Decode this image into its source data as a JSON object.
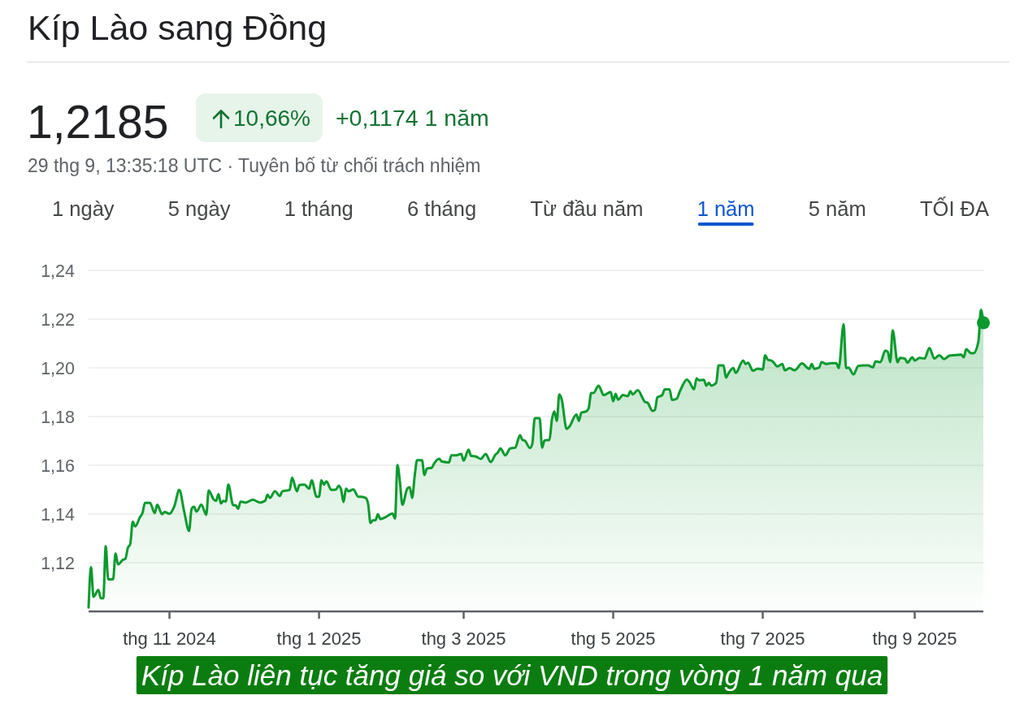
{
  "chart_data": {
    "type": "area",
    "title": "Kíp Lào sang Đồng",
    "annotations": [
      "1,2185",
      "10,66%",
      "+0,1174 1 năm",
      "29 thg 9, 13:35:18 UTC · Tuyên bố từ chối trách nhiệm",
      "1 ngày",
      "5 ngày",
      "1 tháng",
      "6 tháng",
      "Từ đầu năm",
      "1 năm",
      "5 năm",
      "TỐI ĐA",
      "Kíp Lào liên tục tăng giá so với VND trong vòng 1 năm qua"
    ],
    "xlim": [
      "2024-09-29",
      "2025-09-29"
    ],
    "xticks": [
      {
        "value": "2024-11-01",
        "label": "thg 11 2024"
      },
      {
        "value": "2025-01-01",
        "label": "thg 1 2025"
      },
      {
        "value": "2025-03-01",
        "label": "thg 3 2025"
      },
      {
        "value": "2025-05-01",
        "label": "thg 5 2025"
      },
      {
        "value": "2025-07-01",
        "label": "thg 7 2025"
      },
      {
        "value": "2025-09-01",
        "label": "thg 9 2025"
      }
    ],
    "ylim": [
      1.1,
      1.24
    ],
    "yticks": [
      {
        "value": 1.12,
        "label": "1,12"
      },
      {
        "value": 1.14,
        "label": "1,14"
      },
      {
        "value": 1.16,
        "label": "1,16"
      },
      {
        "value": 1.18,
        "label": "1,18"
      },
      {
        "value": 1.2,
        "label": "1,20"
      },
      {
        "value": 1.22,
        "label": "1,22"
      },
      {
        "value": 1.24,
        "label": "1,24"
      }
    ],
    "grid": "y",
    "series": [
      {
        "color": "#0a9a2e",
        "x": [
          "2024-09-29",
          "2024-09-30",
          "2024-10-01",
          "2024-10-03",
          "2024-10-04",
          "2024-10-05",
          "2024-10-06",
          "2024-10-07",
          "2024-10-09",
          "2024-10-10",
          "2024-10-11",
          "2024-10-13",
          "2024-10-14",
          "2024-10-15",
          "2024-10-16",
          "2024-10-17",
          "2024-10-18",
          "2024-10-20",
          "2024-10-21",
          "2024-10-22",
          "2024-10-24",
          "2024-10-26",
          "2024-10-27",
          "2024-10-29",
          "2024-10-30",
          "2024-11-01",
          "2024-11-03",
          "2024-11-05",
          "2024-11-07",
          "2024-11-09",
          "2024-11-10",
          "2024-11-11",
          "2024-11-12",
          "2024-11-14",
          "2024-11-16",
          "2024-11-17",
          "2024-11-19",
          "2024-11-20",
          "2024-11-21",
          "2024-11-22",
          "2024-11-23",
          "2024-11-24",
          "2024-11-25",
          "2024-11-27",
          "2024-11-28",
          "2024-11-29",
          "2024-11-30",
          "2024-12-02",
          "2024-12-05",
          "2024-12-08",
          "2024-12-10",
          "2024-12-11",
          "2024-12-12",
          "2024-12-14",
          "2024-12-16",
          "2024-12-17",
          "2024-12-20",
          "2024-12-21",
          "2024-12-23",
          "2024-12-24",
          "2024-12-26",
          "2024-12-28",
          "2024-12-29",
          "2024-12-31",
          "2025-01-01",
          "2025-01-02",
          "2025-01-03",
          "2025-01-04",
          "2025-01-06",
          "2025-01-08",
          "2025-01-09",
          "2025-01-10",
          "2025-01-11",
          "2025-01-12",
          "2025-01-13",
          "2025-01-15",
          "2025-01-17",
          "2025-01-18",
          "2025-01-20",
          "2025-01-21",
          "2025-01-22",
          "2025-01-23",
          "2025-01-24",
          "2025-01-25",
          "2025-01-26",
          "2025-01-28",
          "2025-01-30",
          "2025-01-31",
          "2025-02-01",
          "2025-02-02",
          "2025-02-03",
          "2025-02-04",
          "2025-02-06",
          "2025-02-07",
          "2025-02-08",
          "2025-02-09",
          "2025-02-10",
          "2025-02-12",
          "2025-02-13",
          "2025-02-14",
          "2025-02-16",
          "2025-02-17",
          "2025-02-19",
          "2025-02-20",
          "2025-02-23",
          "2025-02-24",
          "2025-02-26",
          "2025-02-28",
          "2025-03-01",
          "2025-03-03",
          "2025-03-04",
          "2025-03-06",
          "2025-03-08",
          "2025-03-10",
          "2025-03-12",
          "2025-03-14",
          "2025-03-15",
          "2025-03-16",
          "2025-03-18",
          "2025-03-20",
          "2025-03-22",
          "2025-03-24",
          "2025-03-25",
          "2025-03-26",
          "2025-03-28",
          "2025-03-29",
          "2025-03-30",
          "2025-04-01",
          "2025-04-02",
          "2025-04-03",
          "2025-04-05",
          "2025-04-06",
          "2025-04-07",
          "2025-04-08",
          "2025-04-09",
          "2025-04-10",
          "2025-04-12",
          "2025-04-13",
          "2025-04-16",
          "2025-04-17",
          "2025-04-18",
          "2025-04-20",
          "2025-04-21",
          "2025-04-22",
          "2025-04-23",
          "2025-04-25",
          "2025-04-26",
          "2025-04-27",
          "2025-04-30",
          "2025-05-01",
          "2025-05-02",
          "2025-05-03",
          "2025-05-05",
          "2025-05-07",
          "2025-05-08",
          "2025-05-09",
          "2025-05-11",
          "2025-05-14",
          "2025-05-15",
          "2025-05-17",
          "2025-05-18",
          "2025-05-19",
          "2025-05-21",
          "2025-05-22",
          "2025-05-24",
          "2025-05-25",
          "2025-05-27",
          "2025-05-28",
          "2025-05-29",
          "2025-05-31",
          "2025-06-01",
          "2025-06-03",
          "2025-06-04",
          "2025-06-05",
          "2025-06-07",
          "2025-06-08",
          "2025-06-09",
          "2025-06-10",
          "2025-06-12",
          "2025-06-13",
          "2025-06-15",
          "2025-06-16",
          "2025-06-17",
          "2025-06-19",
          "2025-06-20",
          "2025-06-23",
          "2025-06-24",
          "2025-06-25",
          "2025-06-27",
          "2025-06-29",
          "2025-07-01",
          "2025-07-02",
          "2025-07-03",
          "2025-07-05",
          "2025-07-07",
          "2025-07-09",
          "2025-07-10",
          "2025-07-12",
          "2025-07-14",
          "2025-07-17",
          "2025-07-20",
          "2025-07-21",
          "2025-07-22",
          "2025-07-24",
          "2025-07-25",
          "2025-07-27",
          "2025-07-29",
          "2025-07-31",
          "2025-08-01",
          "2025-08-03",
          "2025-08-04",
          "2025-08-05",
          "2025-08-07",
          "2025-08-09",
          "2025-08-11",
          "2025-08-13",
          "2025-08-15",
          "2025-08-16",
          "2025-08-18",
          "2025-08-20",
          "2025-08-21",
          "2025-08-22",
          "2025-08-23",
          "2025-08-25",
          "2025-08-26",
          "2025-08-28",
          "2025-08-29",
          "2025-08-31",
          "2025-09-01",
          "2025-09-03",
          "2025-09-05",
          "2025-09-07",
          "2025-09-09",
          "2025-09-11",
          "2025-09-13",
          "2025-09-15",
          "2025-09-17",
          "2025-09-20",
          "2025-09-21",
          "2025-09-22",
          "2025-09-24",
          "2025-09-25",
          "2025-09-27",
          "2025-09-28",
          "2025-09-29"
        ],
        "values": [
          1.1016,
          1.1182,
          1.106,
          1.1088,
          1.1054,
          1.1054,
          1.1268,
          1.1132,
          1.1132,
          1.1238,
          1.1193,
          1.1212,
          1.1216,
          1.126,
          1.1277,
          1.1368,
          1.1349,
          1.1388,
          1.1404,
          1.1446,
          1.1446,
          1.1404,
          1.1438,
          1.1399,
          1.1408,
          1.1401,
          1.1432,
          1.1499,
          1.141,
          1.133,
          1.1421,
          1.143,
          1.141,
          1.1438,
          1.1397,
          1.1497,
          1.146,
          1.1454,
          1.1482,
          1.1443,
          1.1454,
          1.1451,
          1.1521,
          1.1436,
          1.1436,
          1.1421,
          1.1451,
          1.1447,
          1.1458,
          1.1447,
          1.1454,
          1.1479,
          1.1466,
          1.1493,
          1.1474,
          1.1493,
          1.1499,
          1.1549,
          1.1493,
          1.1519,
          1.1521,
          1.1504,
          1.1538,
          1.1471,
          1.1471,
          1.1538,
          1.1521,
          1.1534,
          1.1499,
          1.1501,
          1.1516,
          1.1501,
          1.1449,
          1.1504,
          1.1493,
          1.1501,
          1.1471,
          1.1471,
          1.1466,
          1.1443,
          1.1363,
          1.1374,
          1.1374,
          1.1399,
          1.1379,
          1.1386,
          1.1399,
          1.1402,
          1.1382,
          1.1601,
          1.1532,
          1.1438,
          1.1504,
          1.151,
          1.1466,
          1.1554,
          1.1621,
          1.1621,
          1.156,
          1.1586,
          1.159,
          1.1608,
          1.1627,
          1.1616,
          1.1612,
          1.1641,
          1.1641,
          1.1647,
          1.1619,
          1.1664,
          1.1639,
          1.1636,
          1.1626,
          1.1647,
          1.1613,
          1.1644,
          1.1653,
          1.1669,
          1.1641,
          1.1669,
          1.1672,
          1.1723,
          1.1704,
          1.1701,
          1.1671,
          1.1688,
          1.1793,
          1.1793,
          1.1672,
          1.1702,
          1.1704,
          1.1788,
          1.1821,
          1.1782,
          1.1891,
          1.1871,
          1.1749,
          1.1757,
          1.1808,
          1.1782,
          1.1816,
          1.1821,
          1.1834,
          1.1897,
          1.1897,
          1.1927,
          1.191,
          1.1888,
          1.1901,
          1.1863,
          1.1893,
          1.1869,
          1.1888,
          1.1884,
          1.1904,
          1.1891,
          1.1908,
          1.186,
          1.1857,
          1.1823,
          1.1827,
          1.1879,
          1.1888,
          1.1912,
          1.1912,
          1.1868,
          1.1874,
          1.1899,
          1.1921,
          1.1952,
          1.1943,
          1.1912,
          1.1957,
          1.1949,
          1.1951,
          1.1927,
          1.1938,
          1.1927,
          1.1938,
          1.201,
          1.201,
          1.196,
          1.1977,
          1.1999,
          1.1979,
          1.203,
          1.2016,
          1.2021,
          1.1988,
          1.1997,
          1.1993,
          1.2052,
          1.2034,
          1.2027,
          1.2006,
          1.2016,
          1.199,
          1.1999,
          1.199,
          1.2018,
          1.1996,
          1.2016,
          1.1996,
          1.2001,
          1.2023,
          1.2016,
          1.2019,
          1.2019,
          1.1999,
          1.2179,
          1.1999,
          1.2001,
          1.1973,
          1.2008,
          1.201,
          1.201,
          1.2002,
          1.2027,
          1.2023,
          1.2071,
          1.2066,
          1.2023,
          1.2154,
          1.2023,
          1.2041,
          1.2038,
          1.2021,
          1.2043,
          1.203,
          1.2041,
          1.2038,
          1.2082,
          1.2038,
          1.2052,
          1.2036,
          1.2049,
          1.2052,
          1.2054,
          1.2043,
          1.2077,
          1.206,
          1.206,
          1.211,
          1.2238,
          1.2185
        ]
      },
      {
        "type": "scatter",
        "color": "#0a9a2e",
        "marker": "circle",
        "x": [
          "2025-09-29"
        ],
        "values": [
          1.2185
        ]
      }
    ]
  }
}
